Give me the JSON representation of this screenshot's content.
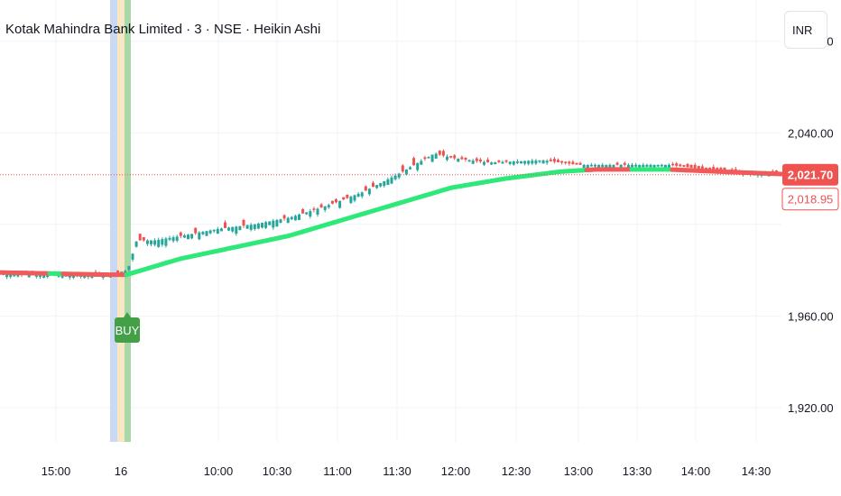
{
  "header": {
    "title": "Kotak Mahindra Bank Limited · 3 · NSE · Heikin Ashi",
    "currency": "INR"
  },
  "colors": {
    "up": "#26a69a",
    "down": "#ef5350",
    "ma_up": "#2ee87a",
    "ma_down": "#f05a5a",
    "signal_bg_blue": "#c9d8f3",
    "signal_bg_yellow": "#f7e7c2",
    "signal_bg_green": "#a8d8a6",
    "buy_label": "#43a047",
    "grid": "#f0f3fa",
    "axis_text": "#131722"
  },
  "chart_data": {
    "type": "candlestick",
    "ylim": [
      1905,
      2098
    ],
    "y_ticks": [
      "2,080.00",
      "2,040.00",
      "1,960.00",
      "1,920.00"
    ],
    "y_tick_values": [
      2080,
      2040,
      1960,
      1920
    ],
    "x_ticks": [
      "15:00",
      "16",
      "10:00",
      "10:30",
      "11:00",
      "11:30",
      "12:00",
      "12:30",
      "13:00",
      "13:30",
      "14:00",
      "14:30"
    ],
    "last_price": "2,021.70",
    "last_price_value": 2021.7,
    "ma_price": "2,018.95",
    "ma_price_value": 2018.95,
    "signal_label": "BUY",
    "grid": true
  }
}
